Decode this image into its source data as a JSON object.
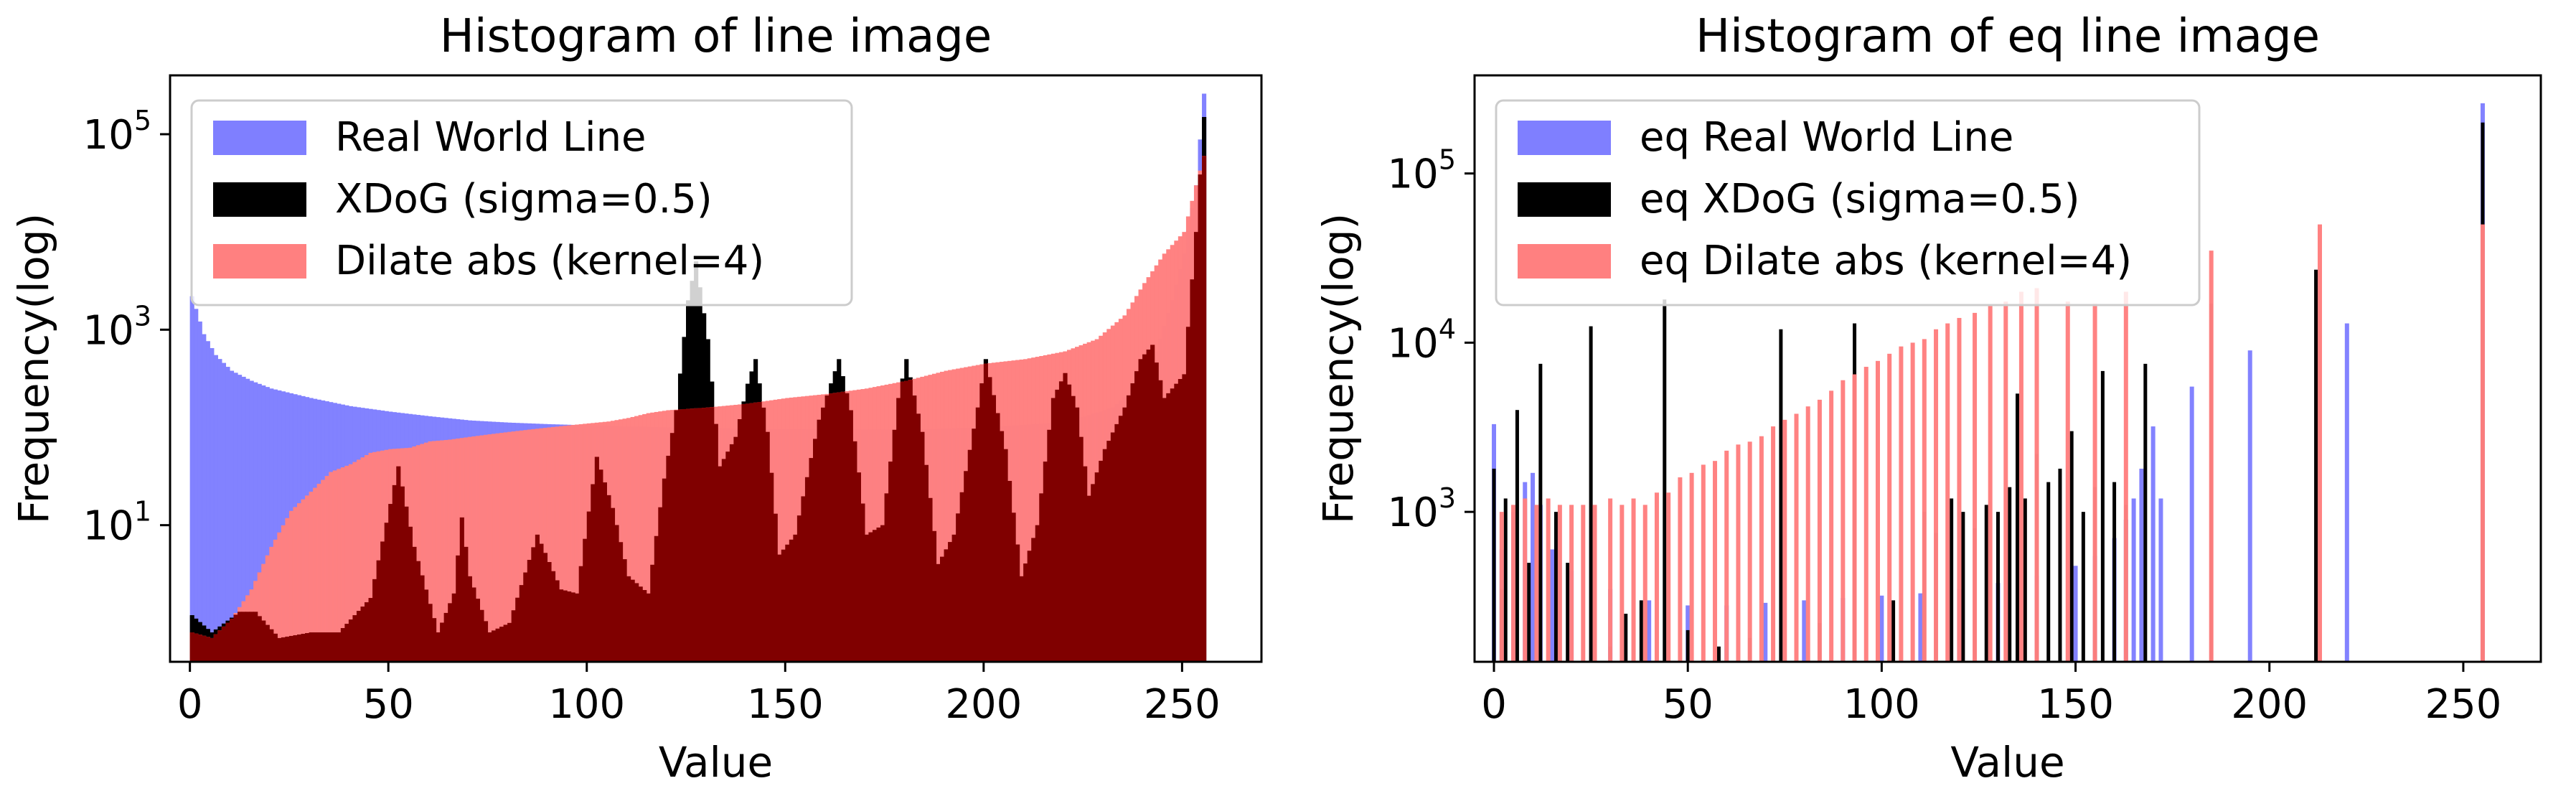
{
  "chart_data": [
    {
      "type": "bar",
      "title": "Histogram of line image",
      "xlabel": "Value",
      "ylabel": "Frequency(log)",
      "yscale": "log",
      "xlim": [
        -5,
        270
      ],
      "ylim": [
        0.4,
        400000
      ],
      "xticks": [
        0,
        50,
        100,
        150,
        200,
        250
      ],
      "xtick_labels": [
        "0",
        "50",
        "100",
        "150",
        "200",
        "250"
      ],
      "yticks": [
        {
          "value": 10,
          "base": "10",
          "exp": "1"
        },
        {
          "value": 1000,
          "base": "10",
          "exp": "3"
        },
        {
          "value": 100000,
          "base": "10",
          "exp": "5"
        }
      ],
      "legend_position": "upper-left",
      "series": [
        {
          "name": "Real World Line",
          "color": "#7f7fff",
          "peaks": [
            [
              0,
              2200
            ],
            [
              3,
              900
            ],
            [
              6,
              550
            ],
            [
              10,
              380
            ],
            [
              15,
              300
            ],
            [
              20,
              250
            ],
            [
              30,
              200
            ],
            [
              40,
              165
            ],
            [
              50,
              145
            ],
            [
              60,
              130
            ],
            [
              70,
              118
            ],
            [
              80,
              112
            ],
            [
              90,
              108
            ],
            [
              100,
              105
            ],
            [
              120,
              100
            ],
            [
              140,
              97
            ],
            [
              160,
              95
            ],
            [
              180,
              95
            ],
            [
              200,
              100
            ],
            [
              215,
              110
            ],
            [
              225,
              130
            ],
            [
              232,
              160
            ],
            [
              238,
              260
            ],
            [
              243,
              600
            ],
            [
              247,
              2000
            ],
            [
              250,
              6000
            ],
            [
              253,
              30000
            ],
            [
              255,
              260000
            ]
          ]
        },
        {
          "name": "XDoG (sigma=0.5)",
          "color": "#000000",
          "peaks": [
            [
              0,
              1.2
            ],
            [
              5,
              0.8
            ],
            [
              12,
              1.3
            ],
            [
              16,
              1.3
            ],
            [
              22,
              0.7
            ],
            [
              30,
              0.8
            ],
            [
              37,
              0.8
            ],
            [
              45,
              1.8
            ],
            [
              52,
              40
            ],
            [
              56,
              6
            ],
            [
              62,
              0.8
            ],
            [
              66,
              2
            ],
            [
              68,
              12
            ],
            [
              70,
              3
            ],
            [
              75,
              0.8
            ],
            [
              80,
              1
            ],
            [
              87,
              8
            ],
            [
              93,
              2.2
            ],
            [
              97,
              2
            ],
            [
              102,
              50
            ],
            [
              106,
              15
            ],
            [
              110,
              3
            ],
            [
              115,
              2
            ],
            [
              119,
              30
            ],
            [
              122,
              150
            ],
            [
              125,
              2000
            ],
            [
              127,
              5000
            ],
            [
              130,
              800
            ],
            [
              133,
              40
            ],
            [
              137,
              80
            ],
            [
              140,
              280
            ],
            [
              142,
              500
            ],
            [
              145,
              90
            ],
            [
              148,
              5
            ],
            [
              152,
              8
            ],
            [
              158,
              120
            ],
            [
              163,
              500
            ],
            [
              166,
              150
            ],
            [
              170,
              8
            ],
            [
              174,
              10
            ],
            [
              178,
              200
            ],
            [
              180,
              500
            ],
            [
              184,
              90
            ],
            [
              188,
              4
            ],
            [
              192,
              8
            ],
            [
              198,
              160
            ],
            [
              200,
              500
            ],
            [
              205,
              60
            ],
            [
              209,
              3
            ],
            [
              213,
              10
            ],
            [
              217,
              200
            ],
            [
              220,
              360
            ],
            [
              223,
              160
            ],
            [
              226,
              20
            ],
            [
              230,
              60
            ],
            [
              235,
              160
            ],
            [
              239,
              500
            ],
            [
              242,
              700
            ],
            [
              245,
              200
            ],
            [
              250,
              350
            ],
            [
              253,
              10000
            ],
            [
              255,
              150000
            ]
          ]
        },
        {
          "name": "Dilate abs (kernel=4)",
          "color": "#ff8080",
          "peaks": [
            [
              0,
              0.8
            ],
            [
              5,
              0.7
            ],
            [
              10,
              1.1
            ],
            [
              15,
              2.2
            ],
            [
              20,
              6
            ],
            [
              25,
              14
            ],
            [
              30,
              22
            ],
            [
              35,
              35
            ],
            [
              40,
              42
            ],
            [
              45,
              55
            ],
            [
              50,
              60
            ],
            [
              55,
              62
            ],
            [
              60,
              72
            ],
            [
              65,
              75
            ],
            [
              70,
              80
            ],
            [
              75,
              85
            ],
            [
              80,
              90
            ],
            [
              85,
              95
            ],
            [
              90,
              100
            ],
            [
              95,
              105
            ],
            [
              100,
              110
            ],
            [
              105,
              115
            ],
            [
              110,
              125
            ],
            [
              115,
              140
            ],
            [
              120,
              150
            ],
            [
              130,
              160
            ],
            [
              140,
              175
            ],
            [
              150,
              200
            ],
            [
              160,
              220
            ],
            [
              170,
              250
            ],
            [
              180,
              300
            ],
            [
              190,
              380
            ],
            [
              200,
              450
            ],
            [
              210,
              500
            ],
            [
              220,
              600
            ],
            [
              228,
              800
            ],
            [
              235,
              1400
            ],
            [
              240,
              3000
            ],
            [
              245,
              6000
            ],
            [
              250,
              10000
            ],
            [
              253,
              30000
            ],
            [
              255,
              60000
            ]
          ]
        }
      ]
    },
    {
      "type": "bar",
      "title": "Histogram of eq line image",
      "xlabel": "Value",
      "ylabel": "Frequency(log)",
      "yscale": "log",
      "xlim": [
        -5,
        270
      ],
      "ylim": [
        130,
        380000
      ],
      "xticks": [
        0,
        50,
        100,
        150,
        200,
        250
      ],
      "xtick_labels": [
        "0",
        "50",
        "100",
        "150",
        "200",
        "250"
      ],
      "yticks": [
        {
          "value": 1000,
          "base": "10",
          "exp": "3"
        },
        {
          "value": 10000,
          "base": "10",
          "exp": "4"
        },
        {
          "value": 100000,
          "base": "10",
          "exp": "5"
        }
      ],
      "legend_position": "upper-left",
      "series": [
        {
          "name": "eq Real World Line",
          "color": "#7f7fff",
          "peaks": [
            [
              0,
              3300
            ],
            [
              2,
              600
            ],
            [
              5,
              1000
            ],
            [
              8,
              1500
            ],
            [
              10,
              1700
            ],
            [
              12,
              1100
            ],
            [
              15,
              600
            ],
            [
              20,
              450
            ],
            [
              30,
              350
            ],
            [
              40,
              300
            ],
            [
              50,
              280
            ],
            [
              60,
              280
            ],
            [
              70,
              290
            ],
            [
              80,
              300
            ],
            [
              90,
              310
            ],
            [
              100,
              320
            ],
            [
              110,
              330
            ],
            [
              120,
              350
            ],
            [
              130,
              380
            ],
            [
              140,
              420
            ],
            [
              150,
              480
            ],
            [
              155,
              550
            ],
            [
              160,
              700
            ],
            [
              163,
              900
            ],
            [
              165,
              1200
            ],
            [
              167,
              1800
            ],
            [
              170,
              3200
            ],
            [
              172,
              1200
            ],
            [
              180,
              5500
            ],
            [
              195,
              9000
            ],
            [
              220,
              13000
            ],
            [
              255,
              260000
            ]
          ]
        },
        {
          "name": "eq XDoG (sigma=0.5)",
          "color": "#000000",
          "peaks": [
            [
              0,
              1800
            ],
            [
              2,
              350
            ],
            [
              3,
              1200
            ],
            [
              6,
              4000
            ],
            [
              9,
              500
            ],
            [
              12,
              7500
            ],
            [
              16,
              1000
            ],
            [
              19,
              500
            ],
            [
              25,
              12500
            ],
            [
              30,
              160
            ],
            [
              34,
              250
            ],
            [
              38,
              300
            ],
            [
              44,
              18000
            ],
            [
              50,
              200
            ],
            [
              58,
              160
            ],
            [
              66,
              180
            ],
            [
              74,
              12000
            ],
            [
              84,
              220
            ],
            [
              93,
              13000
            ],
            [
              103,
              300
            ],
            [
              111,
              1000
            ],
            [
              114,
              750
            ],
            [
              118,
              1200
            ],
            [
              121,
              1000
            ],
            [
              124,
              800
            ],
            [
              127,
              1100
            ],
            [
              130,
              1000
            ],
            [
              133,
              1400
            ],
            [
              135,
              5000
            ],
            [
              137,
              1200
            ],
            [
              140,
              2200
            ],
            [
              143,
              1500
            ],
            [
              146,
              1800
            ],
            [
              149,
              3000
            ],
            [
              152,
              1000
            ],
            [
              155,
              1400
            ],
            [
              157,
              6800
            ],
            [
              160,
              1500
            ],
            [
              163,
              1100
            ],
            [
              168,
              7500
            ],
            [
              185,
              17000
            ],
            [
              212,
              27000
            ],
            [
              255,
              200000
            ]
          ]
        },
        {
          "name": "eq Dilate abs (kernel=4)",
          "color": "#ff8080",
          "peaks": [
            [
              2,
              1000
            ],
            [
              5,
              1100
            ],
            [
              8,
              1200
            ],
            [
              11,
              1100
            ],
            [
              14,
              1200
            ],
            [
              17,
              1100
            ],
            [
              20,
              1100
            ],
            [
              23,
              1100
            ],
            [
              26,
              1100
            ],
            [
              30,
              1200
            ],
            [
              33,
              1100
            ],
            [
              36,
              1200
            ],
            [
              39,
              1100
            ],
            [
              42,
              1300
            ],
            [
              45,
              1300
            ],
            [
              48,
              1600
            ],
            [
              51,
              1700
            ],
            [
              54,
              1900
            ],
            [
              57,
              2000
            ],
            [
              60,
              2300
            ],
            [
              63,
              2500
            ],
            [
              66,
              2600
            ],
            [
              69,
              2800
            ],
            [
              72,
              3200
            ],
            [
              75,
              3500
            ],
            [
              78,
              3800
            ],
            [
              81,
              4200
            ],
            [
              84,
              4600
            ],
            [
              87,
              5200
            ],
            [
              90,
              6000
            ],
            [
              93,
              6500
            ],
            [
              96,
              7200
            ],
            [
              99,
              7800
            ],
            [
              102,
              8600
            ],
            [
              105,
              9500
            ],
            [
              108,
              10000
            ],
            [
              111,
              10500
            ],
            [
              114,
              12000
            ],
            [
              117,
              13000
            ],
            [
              120,
              14000
            ],
            [
              124,
              15000
            ],
            [
              128,
              16500
            ],
            [
              132,
              17500
            ],
            [
              136,
              20000
            ],
            [
              140,
              21000
            ],
            [
              148,
              17500
            ],
            [
              155,
              17000
            ],
            [
              163,
              20000
            ],
            [
              185,
              35000
            ],
            [
              213,
              50000
            ],
            [
              255,
              50000
            ]
          ]
        }
      ]
    }
  ]
}
